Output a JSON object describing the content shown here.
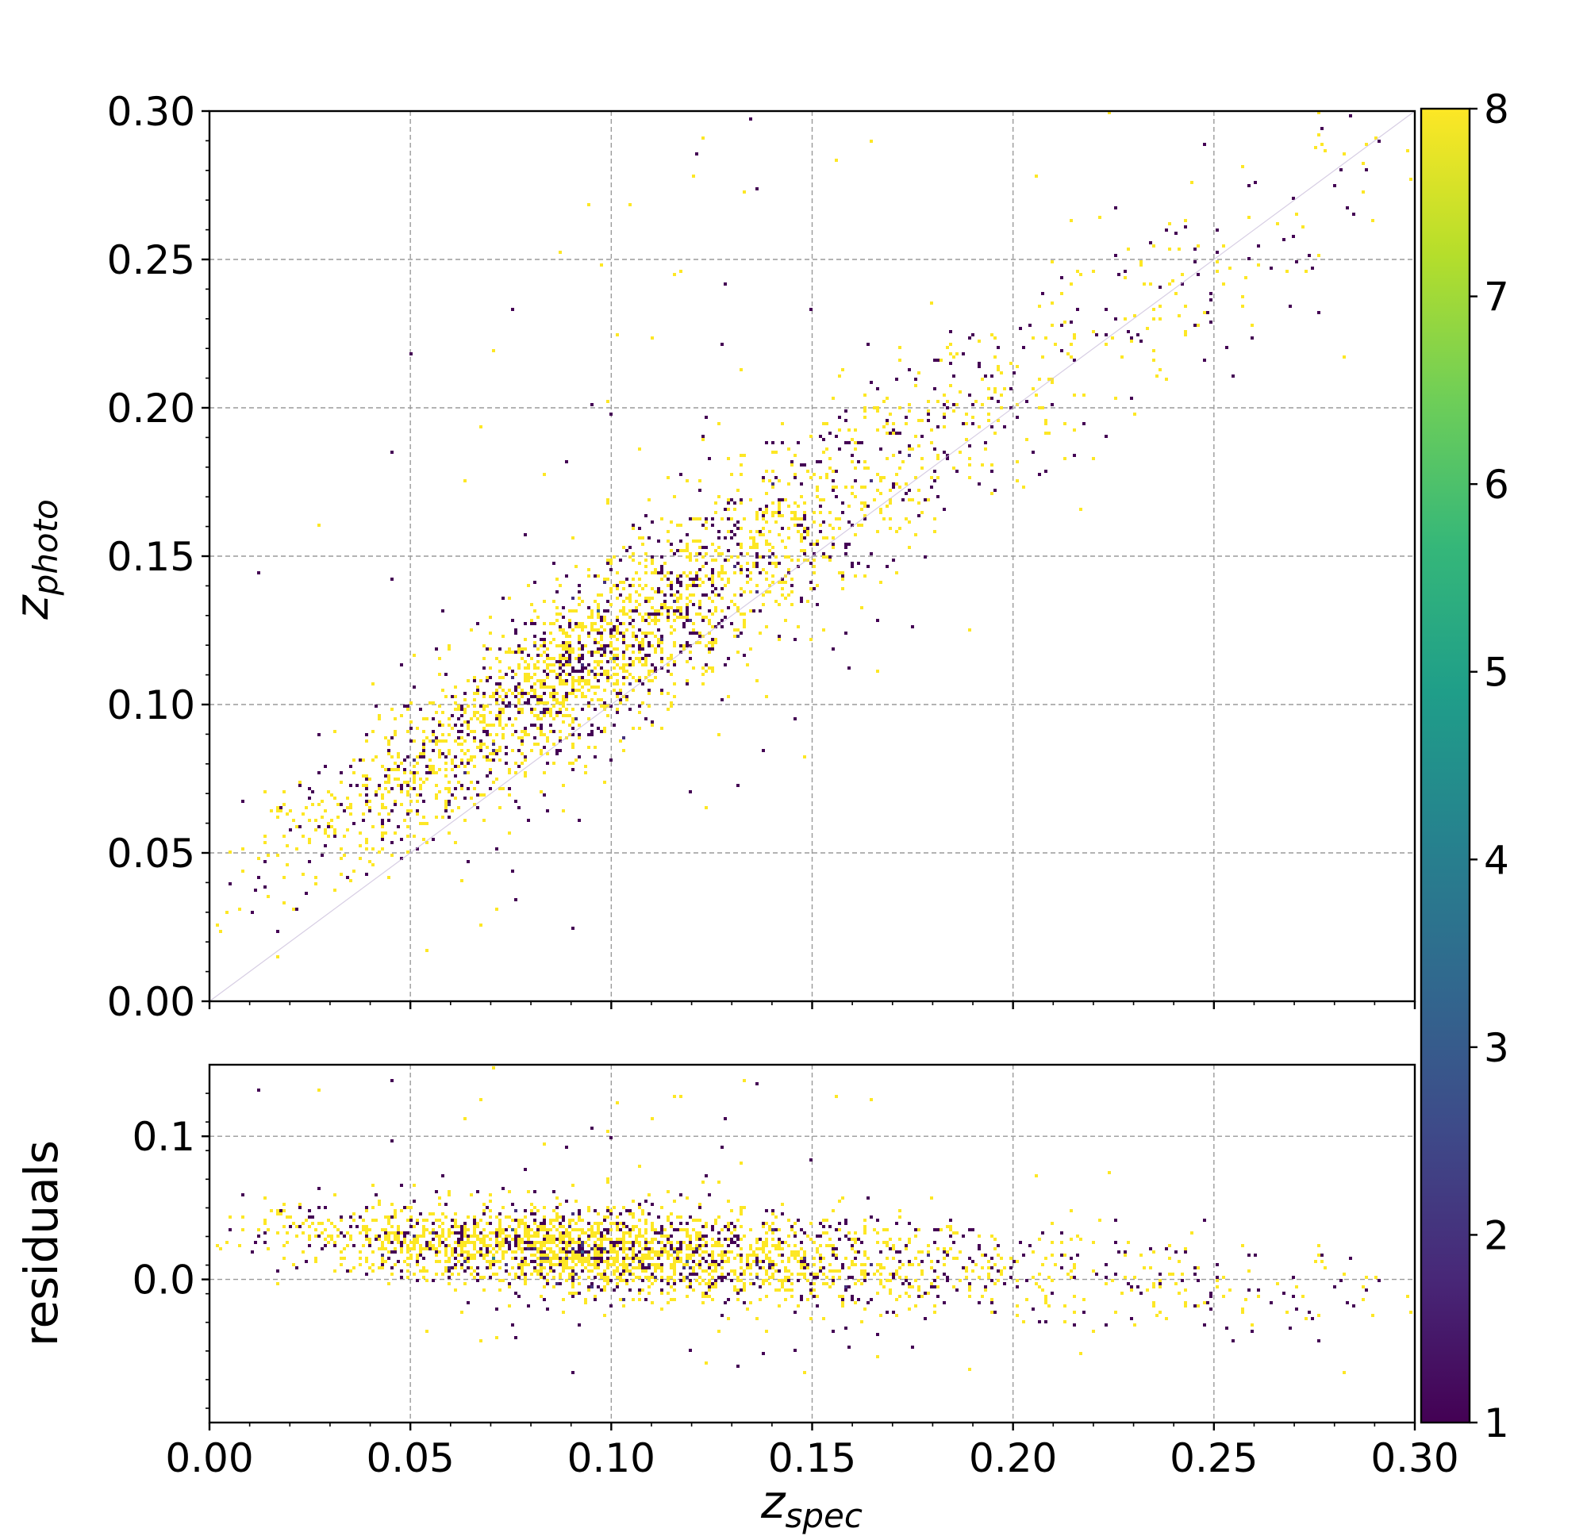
{
  "chart_data": [
    {
      "type": "heatmap",
      "panel": "top",
      "xlabel_base": "",
      "ylabel": {
        "base": "z",
        "sub": "photo"
      },
      "xlim": [
        0.0,
        0.3
      ],
      "ylim": [
        0.0,
        0.3
      ],
      "yticks": [
        "0.00",
        "0.05",
        "0.10",
        "0.15",
        "0.20",
        "0.25",
        "0.30"
      ],
      "ytick_values": [
        0.0,
        0.05,
        0.1,
        0.15,
        0.2,
        0.25,
        0.3
      ],
      "xtick_values": [
        0.0,
        0.05,
        0.1,
        0.15,
        0.2,
        0.25,
        0.3
      ],
      "grid": true,
      "density_model": {
        "relation": "z_photo ≈ z_spec + 0.035 - 0.15·z_spec",
        "peak_x": [
          0.075,
          0.095
        ],
        "peak_y": [
          0.085,
          0.095
        ],
        "peak_count": 8
      }
    },
    {
      "type": "heatmap",
      "panel": "bottom",
      "xlabel": {
        "base": "z",
        "sub": "spec"
      },
      "ylabel": "residuals",
      "xlim": [
        0.0,
        0.3
      ],
      "ylim": [
        -0.1,
        0.15
      ],
      "yticks": [
        "0.0",
        "0.1"
      ],
      "ytick_values": [
        0.0,
        0.1
      ],
      "xticks": [
        "0.00",
        "0.05",
        "0.10",
        "0.15",
        "0.20",
        "0.25",
        "0.30"
      ],
      "xtick_values": [
        0.0,
        0.05,
        0.1,
        0.15,
        0.2,
        0.25,
        0.3
      ],
      "grid": true,
      "density_model": {
        "relation": "residual ≈ 0.018 - 0.075·z_spec",
        "peak_x": [
          0.075,
          0.095
        ],
        "peak_y": [
          0.005,
          0.015
        ],
        "peak_count": 8
      }
    }
  ],
  "colorbar": {
    "min": 1,
    "max": 8,
    "ticks": [
      "1",
      "2",
      "3",
      "4",
      "5",
      "6",
      "7",
      "8"
    ],
    "tick_values": [
      1,
      2,
      3,
      4,
      5,
      6,
      7,
      8
    ],
    "colormap": "viridis",
    "colors": [
      "#440154",
      "#482878",
      "#3e4a89",
      "#31688e",
      "#26828e",
      "#1f9e89",
      "#35b779",
      "#6ece58",
      "#b5de2b",
      "#fde725"
    ]
  }
}
